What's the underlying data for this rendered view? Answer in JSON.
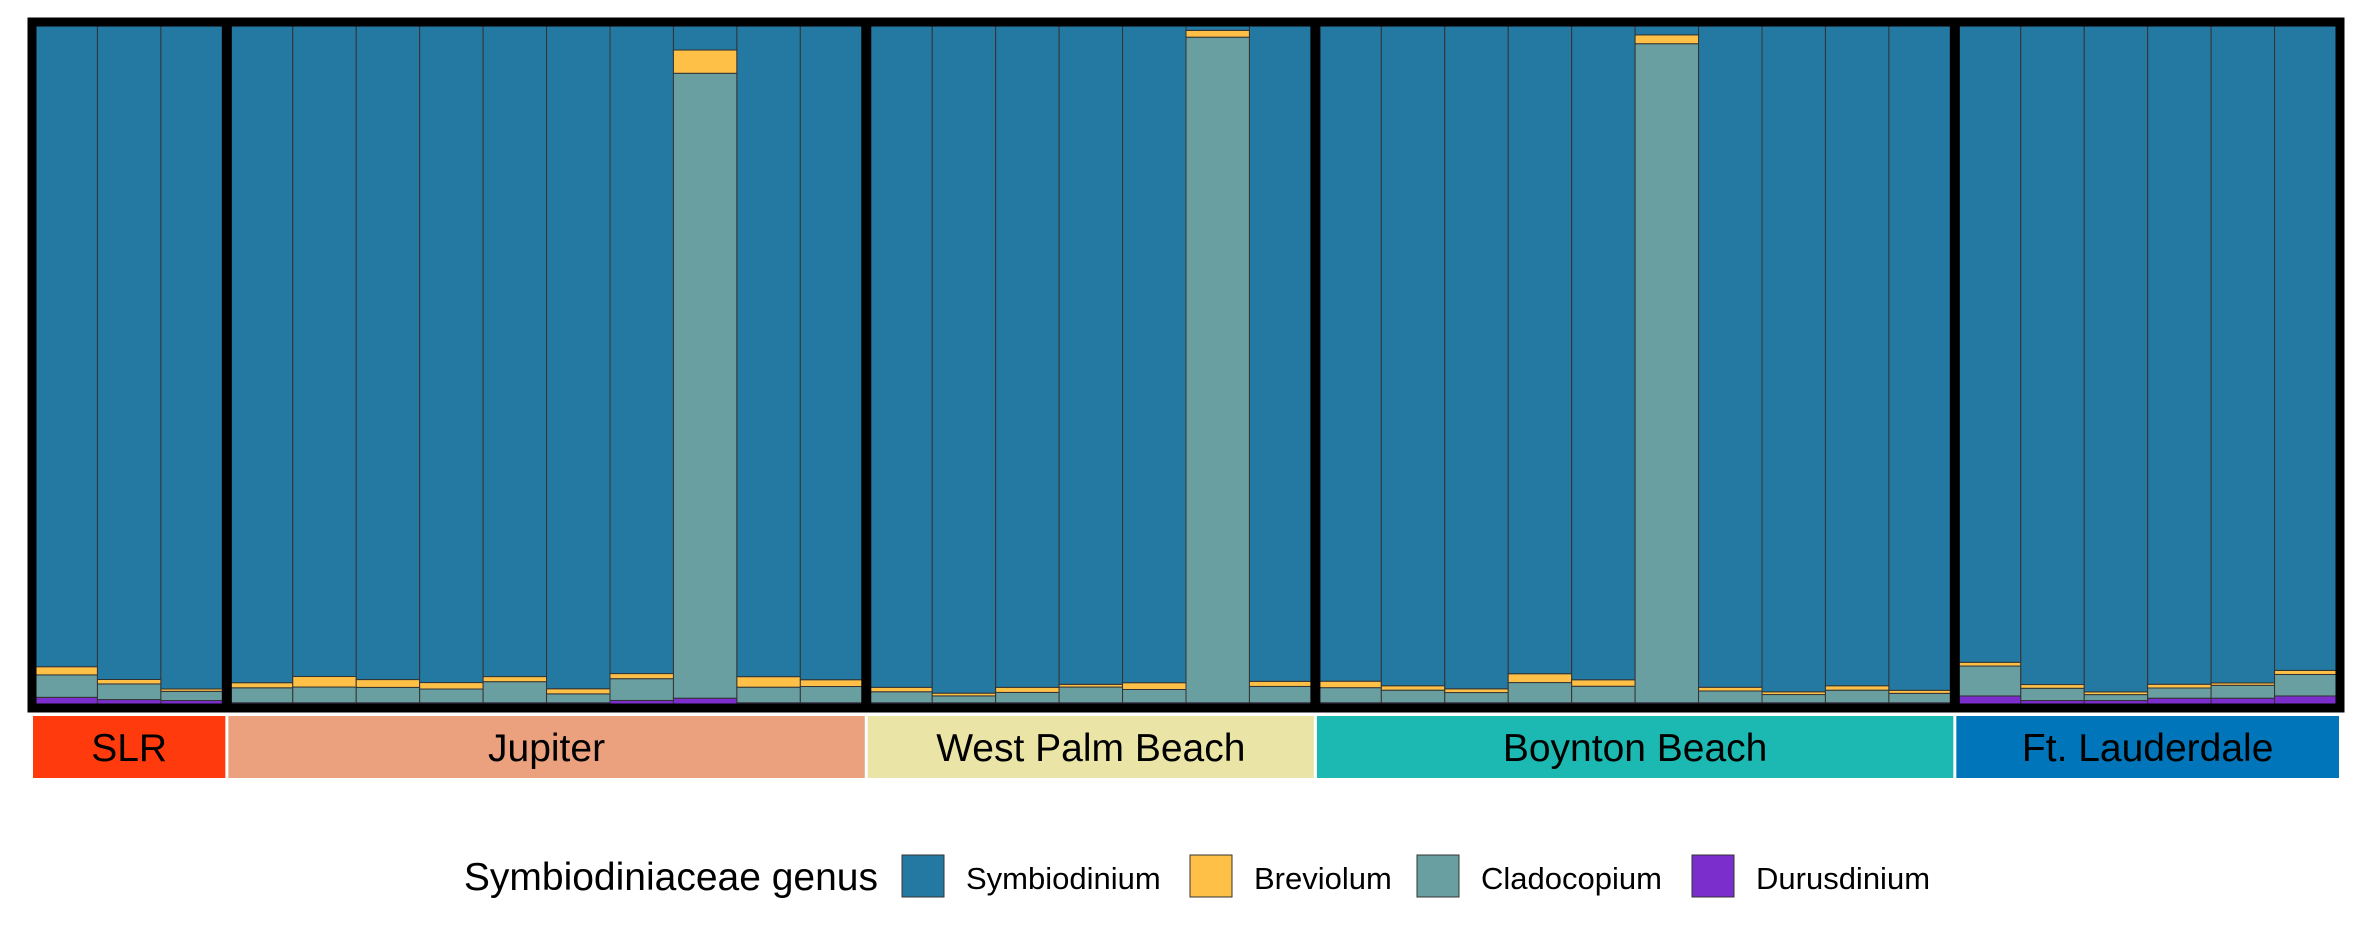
{
  "chart_data": {
    "type": "bar",
    "stacked": true,
    "normalized": true,
    "ylim": [
      0,
      1
    ],
    "colors": {
      "Symbiodinium": "#2479A2",
      "Breviolum": "#FFC048",
      "Cladocopium": "#6A9FA1",
      "Durusdinium": "#7B2ECC"
    },
    "legend": {
      "title": "Symbiodiniaceae genus",
      "position": "bottom",
      "entries": [
        "Symbiodinium",
        "Breviolum",
        "Cladocopium",
        "Durusdinium"
      ]
    },
    "sites": [
      {
        "name": "SLR",
        "color": "#FF3A0C",
        "samples": [
          {
            "Symbiodinium": 0.9437,
            "Breviolum": 0.012,
            "Cladocopium": 0.033,
            "Durusdinium": 0.0113
          },
          {
            "Symbiodinium": 0.9625,
            "Breviolum": 0.0065,
            "Cladocopium": 0.023,
            "Durusdinium": 0.008
          },
          {
            "Symbiodinium": 0.9764,
            "Breviolum": 0.0035,
            "Cladocopium": 0.0135,
            "Durusdinium": 0.0066
          }
        ]
      },
      {
        "name": "Jupiter",
        "color": "#EBA17E",
        "samples": [
          {
            "Symbiodinium": 0.9672,
            "Breviolum": 0.0075,
            "Cladocopium": 0.022,
            "Durusdinium": 0.0033
          },
          {
            "Symbiodinium": 0.9581,
            "Breviolum": 0.0155,
            "Cladocopium": 0.0231,
            "Durusdinium": 0.0033
          },
          {
            "Symbiodinium": 0.9626,
            "Breviolum": 0.0115,
            "Cladocopium": 0.0226,
            "Durusdinium": 0.0033
          },
          {
            "Symbiodinium": 0.967,
            "Breviolum": 0.0095,
            "Cladocopium": 0.0202,
            "Durusdinium": 0.0033
          },
          {
            "Symbiodinium": 0.9582,
            "Breviolum": 0.0075,
            "Cladocopium": 0.031,
            "Durusdinium": 0.0033
          },
          {
            "Symbiodinium": 0.9761,
            "Breviolum": 0.0075,
            "Cladocopium": 0.0131,
            "Durusdinium": 0.0033
          },
          {
            "Symbiodinium": 0.9538,
            "Breviolum": 0.0075,
            "Cladocopium": 0.032,
            "Durusdinium": 0.0067
          },
          {
            "Symbiodinium": 0.0368,
            "Breviolum": 0.0342,
            "Cladocopium": 0.919,
            "Durusdinium": 0.01
          },
          {
            "Symbiodinium": 0.9583,
            "Breviolum": 0.0155,
            "Cladocopium": 0.0229,
            "Durusdinium": 0.0033
          },
          {
            "Symbiodinium": 0.9628,
            "Breviolum": 0.01,
            "Cladocopium": 0.0239,
            "Durusdinium": 0.0033
          }
        ]
      },
      {
        "name": "West Palm Beach",
        "color": "#EAE5A7",
        "samples": [
          {
            "Symbiodinium": 0.974,
            "Breviolum": 0.0065,
            "Cladocopium": 0.0162,
            "Durusdinium": 0.0033
          },
          {
            "Symbiodinium": 0.9826,
            "Breviolum": 0.004,
            "Cladocopium": 0.0101,
            "Durusdinium": 0.0033
          },
          {
            "Symbiodinium": 0.974,
            "Breviolum": 0.0075,
            "Cladocopium": 0.0152,
            "Durusdinium": 0.0033
          },
          {
            "Symbiodinium": 0.9696,
            "Breviolum": 0.004,
            "Cladocopium": 0.0231,
            "Durusdinium": 0.0033
          },
          {
            "Symbiodinium": 0.9672,
            "Breviolum": 0.01,
            "Cladocopium": 0.0195,
            "Durusdinium": 0.0033
          },
          {
            "Symbiodinium": 0.0079,
            "Breviolum": 0.01,
            "Cladocopium": 0.9788,
            "Durusdinium": 0.0033
          },
          {
            "Symbiodinium": 0.9652,
            "Breviolum": 0.0075,
            "Cladocopium": 0.024,
            "Durusdinium": 0.0033
          }
        ]
      },
      {
        "name": "Boynton Beach",
        "color": "#1CB8B2",
        "samples": [
          {
            "Symbiodinium": 0.965,
            "Breviolum": 0.0095,
            "Cladocopium": 0.0222,
            "Durusdinium": 0.0033
          },
          {
            "Symbiodinium": 0.9717,
            "Breviolum": 0.0065,
            "Cladocopium": 0.0185,
            "Durusdinium": 0.0033
          },
          {
            "Symbiodinium": 0.9762,
            "Breviolum": 0.0055,
            "Cladocopium": 0.015,
            "Durusdinium": 0.0033
          },
          {
            "Symbiodinium": 0.954,
            "Breviolum": 0.013,
            "Cladocopium": 0.0297,
            "Durusdinium": 0.0033
          },
          {
            "Symbiodinium": 0.9629,
            "Breviolum": 0.0095,
            "Cladocopium": 0.0243,
            "Durusdinium": 0.0033
          },
          {
            "Symbiodinium": 0.0145,
            "Breviolum": 0.013,
            "Cladocopium": 0.9692,
            "Durusdinium": 0.0033
          },
          {
            "Symbiodinium": 0.9739,
            "Breviolum": 0.0055,
            "Cladocopium": 0.0173,
            "Durusdinium": 0.0033
          },
          {
            "Symbiodinium": 0.9806,
            "Breviolum": 0.004,
            "Cladocopium": 0.0121,
            "Durusdinium": 0.0033
          },
          {
            "Symbiodinium": 0.9717,
            "Breviolum": 0.0065,
            "Cladocopium": 0.0185,
            "Durusdinium": 0.0033
          },
          {
            "Symbiodinium": 0.9784,
            "Breviolum": 0.0045,
            "Cladocopium": 0.0138,
            "Durusdinium": 0.0033
          }
        ]
      },
      {
        "name": "Ft. Lauderdale",
        "color": "#0175B9",
        "samples": [
          {
            "Symbiodinium": 0.9372,
            "Breviolum": 0.0055,
            "Cladocopium": 0.044,
            "Durusdinium": 0.0133
          },
          {
            "Symbiodinium": 0.9699,
            "Breviolum": 0.0055,
            "Cladocopium": 0.018,
            "Durusdinium": 0.0066
          },
          {
            "Symbiodinium": 0.9807,
            "Breviolum": 0.004,
            "Cladocopium": 0.0087,
            "Durusdinium": 0.0066
          },
          {
            "Symbiodinium": 0.9695,
            "Breviolum": 0.0055,
            "Cladocopium": 0.015,
            "Durusdinium": 0.01
          },
          {
            "Symbiodinium": 0.9675,
            "Breviolum": 0.0035,
            "Cladocopium": 0.019,
            "Durusdinium": 0.01
          },
          {
            "Symbiodinium": 0.9491,
            "Breviolum": 0.006,
            "Cladocopium": 0.0316,
            "Durusdinium": 0.0133
          }
        ]
      }
    ]
  }
}
